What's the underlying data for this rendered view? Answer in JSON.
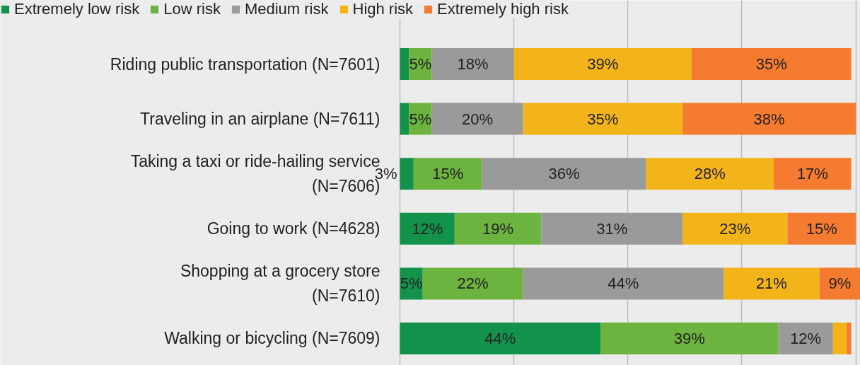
{
  "chart_data": {
    "type": "bar",
    "orientation": "horizontal",
    "stacked": true,
    "data_labels": false,
    "categories": [
      "Riding public transportation (N=7601)",
      "Traveling in an airplane (N=7611)",
      "Taking a taxi or ride-hailing service\n(N=7606)",
      "Going to work (N=4628)",
      "Shopping at a grocery store\n(N=7610)",
      "Walking or bicycling (N=7609)"
    ],
    "series": [
      {
        "name": "Extremely low risk",
        "color": "#12924a",
        "values": [
          2,
          2,
          3,
          12,
          5,
          44
        ],
        "value_labels": [
          null,
          null,
          "3%",
          "12%",
          "5%",
          "44%"
        ]
      },
      {
        "name": "Low risk",
        "color": "#6db33f",
        "values": [
          5,
          5,
          15,
          19,
          22,
          39
        ],
        "value_labels": [
          "5%",
          "5%",
          "15%",
          "19%",
          "22%",
          "39%"
        ]
      },
      {
        "name": "Medium risk",
        "color": "#9a9a9a",
        "values": [
          18,
          20,
          36,
          31,
          44,
          12
        ],
        "value_labels": [
          "18%",
          "20%",
          "36%",
          "31%",
          "44%",
          "12%"
        ]
      },
      {
        "name": "High risk",
        "color": "#f2b418",
        "values": [
          39,
          35,
          28,
          23,
          21,
          3
        ],
        "value_labels": [
          "39%",
          "35%",
          "28%",
          "23%",
          "21%",
          null
        ]
      },
      {
        "name": "Extremely high risk",
        "color": "#f47b2f",
        "values": [
          35,
          38,
          17,
          15,
          9,
          1
        ],
        "value_labels": [
          "35%",
          "38%",
          "17%",
          "15%",
          "9%",
          null
        ]
      }
    ],
    "xlim": [
      0,
      101
    ],
    "xticks": [
      {
        "value": 0,
        "label": null
      },
      {
        "value": 25,
        "label": null
      },
      {
        "value": 50,
        "label": null
      },
      {
        "value": 75,
        "label": null
      },
      {
        "value": 100,
        "label": null
      }
    ],
    "grid": "x",
    "legend": "top",
    "tick_labels": "y"
  }
}
